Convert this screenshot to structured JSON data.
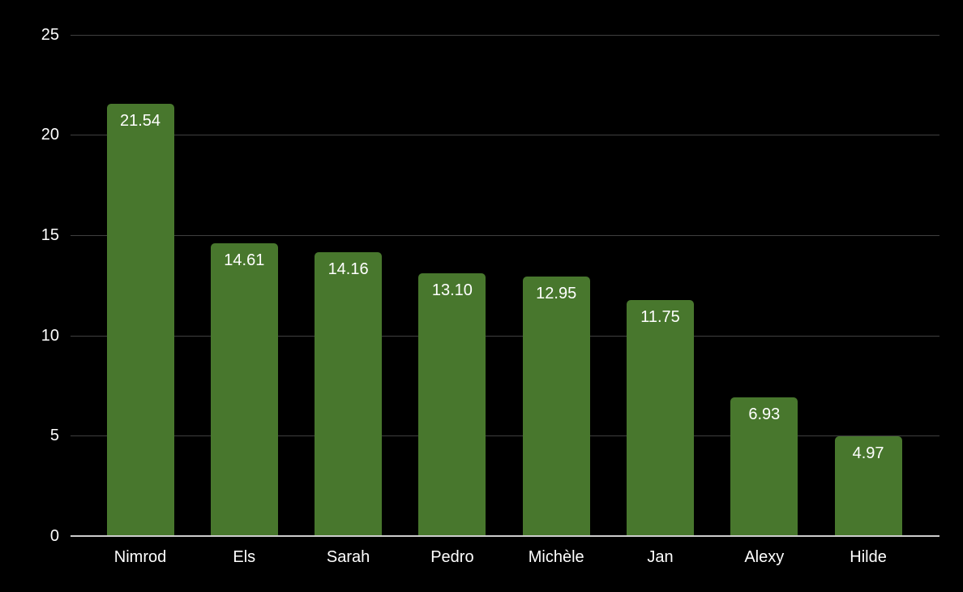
{
  "background_color": "#000000",
  "chart_data": {
    "type": "bar",
    "title": "",
    "xlabel": "",
    "ylabel": "",
    "categories": [
      "Nimrod",
      "Els",
      "Sarah",
      "Pedro",
      "Michèle",
      "Jan",
      "Alexy",
      "Hilde"
    ],
    "values": [
      21.54,
      14.61,
      14.16,
      13.1,
      12.95,
      11.75,
      6.93,
      4.97
    ],
    "value_labels": [
      "21.54",
      "14.61",
      "14.16",
      "13.10",
      "12.95",
      "11.75",
      "6.93",
      "4.97"
    ],
    "ylim": [
      0,
      25
    ],
    "yticks": [
      0,
      5,
      10,
      15,
      20,
      25
    ],
    "ytick_labels": [
      "0",
      "5",
      "10",
      "15",
      "20",
      "25"
    ],
    "grid": true,
    "legend": "none",
    "bar_color": "#48772d",
    "value_label_color": "#ffffff",
    "axis_text_color": "#ffffff",
    "gridline_color": "#404040",
    "baseline_color": "#cccccc",
    "background_color": "#000000"
  }
}
